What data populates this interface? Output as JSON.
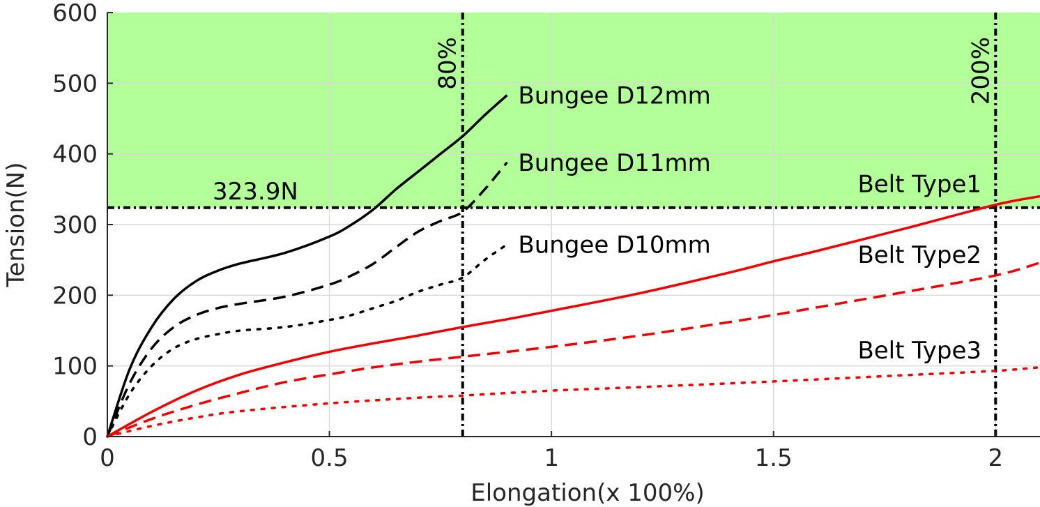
{
  "chart_data": {
    "type": "line",
    "xlabel": "Elongation(x 100%)",
    "ylabel": "Tension(N)",
    "xlim": [
      0,
      2.1
    ],
    "ylim": [
      0,
      600
    ],
    "xticks": [
      0,
      0.5,
      1,
      1.5,
      2
    ],
    "xtick_labels": [
      "0",
      "0.5",
      "1",
      "1.5",
      "2"
    ],
    "yticks": [
      0,
      100,
      200,
      300,
      400,
      500,
      600
    ],
    "ytick_labels": [
      "0",
      "100",
      "200",
      "300",
      "400",
      "500",
      "600"
    ],
    "grid": true,
    "shaded_region": {
      "y_from": 323.9,
      "y_to": 600,
      "color": "#b3ff99"
    },
    "threshold": {
      "y": 323.9,
      "label": "323.9N"
    },
    "vlines": [
      {
        "x": 0.8,
        "label": "80%"
      },
      {
        "x": 2.0,
        "label": "200%"
      }
    ],
    "series": [
      {
        "name": "Bungee D12mm",
        "color": "#000000",
        "style": "solid",
        "x": [
          0,
          0.05,
          0.1,
          0.15,
          0.2,
          0.25,
          0.3,
          0.4,
          0.5,
          0.55,
          0.6,
          0.65,
          0.7,
          0.75,
          0.8,
          0.85,
          0.9
        ],
        "y": [
          0,
          95,
          155,
          195,
          220,
          235,
          245,
          260,
          283,
          300,
          322,
          350,
          375,
          400,
          425,
          455,
          483
        ]
      },
      {
        "name": "Bungee D11mm",
        "color": "#000000",
        "style": "dashed",
        "x": [
          0,
          0.05,
          0.1,
          0.15,
          0.2,
          0.25,
          0.3,
          0.4,
          0.5,
          0.55,
          0.6,
          0.65,
          0.7,
          0.75,
          0.8,
          0.85,
          0.9
        ],
        "y": [
          0,
          75,
          125,
          155,
          172,
          182,
          188,
          198,
          215,
          228,
          245,
          268,
          290,
          305,
          318,
          350,
          388
        ]
      },
      {
        "name": "Bungee D10mm",
        "color": "#000000",
        "style": "dotted",
        "x": [
          0,
          0.05,
          0.1,
          0.15,
          0.2,
          0.25,
          0.3,
          0.4,
          0.5,
          0.55,
          0.6,
          0.65,
          0.7,
          0.75,
          0.8,
          0.85,
          0.9
        ],
        "y": [
          0,
          60,
          100,
          125,
          138,
          145,
          150,
          155,
          165,
          172,
          182,
          192,
          205,
          215,
          225,
          250,
          272
        ]
      },
      {
        "name": "Belt Type1",
        "color": "#ee0000",
        "style": "solid",
        "x": [
          0,
          0.1,
          0.2,
          0.3,
          0.4,
          0.5,
          0.6,
          0.7,
          0.8,
          0.9,
          1.0,
          1.2,
          1.4,
          1.5,
          1.6,
          1.8,
          2.0,
          2.1
        ],
        "y": [
          0,
          35,
          65,
          88,
          105,
          120,
          132,
          143,
          155,
          166,
          178,
          203,
          232,
          248,
          263,
          295,
          328,
          340
        ]
      },
      {
        "name": "Belt Type2",
        "color": "#ee0000",
        "style": "dashed",
        "x": [
          0,
          0.1,
          0.2,
          0.3,
          0.4,
          0.5,
          0.6,
          0.7,
          0.8,
          1.0,
          1.2,
          1.4,
          1.5,
          1.6,
          1.8,
          2.0,
          2.1
        ],
        "y": [
          0,
          25,
          45,
          62,
          77,
          88,
          98,
          106,
          113,
          127,
          143,
          162,
          172,
          183,
          205,
          228,
          246
        ]
      },
      {
        "name": "Belt Type3",
        "color": "#ee0000",
        "style": "dotted",
        "x": [
          0,
          0.1,
          0.2,
          0.3,
          0.5,
          0.7,
          0.8,
          1.0,
          1.2,
          1.5,
          1.8,
          2.0,
          2.1
        ],
        "y": [
          0,
          15,
          27,
          36,
          47,
          55,
          58,
          65,
          70,
          78,
          87,
          93,
          98
        ]
      }
    ]
  }
}
